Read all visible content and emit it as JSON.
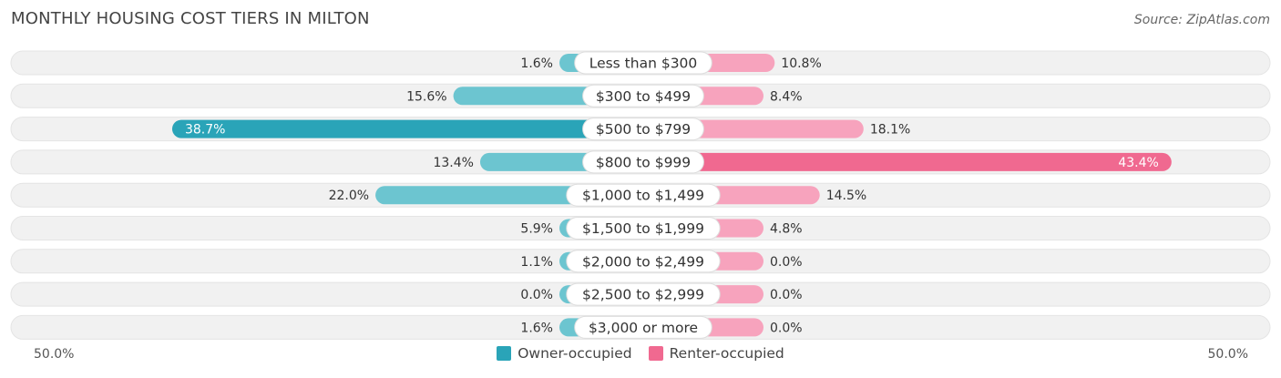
{
  "title": "MONTHLY HOUSING COST TIERS IN MILTON",
  "source": "Source: ZipAtlas.com",
  "colors": {
    "owner": "#6cc5d0",
    "owner_strong": "#2aa4b8",
    "renter": "#f7a3bd",
    "renter_strong": "#f06990",
    "track": "#f1f1f1"
  },
  "chart_data": {
    "type": "bar",
    "orientation": "horizontal-diverging",
    "categories": [
      "Less than $300",
      "$300 to $499",
      "$500 to $799",
      "$800 to $999",
      "$1,000 to $1,499",
      "$1,500 to $1,999",
      "$2,000 to $2,499",
      "$2,500 to $2,999",
      "$3,000 or more"
    ],
    "series": [
      {
        "name": "Owner-occupied",
        "values": [
          1.6,
          15.6,
          38.7,
          13.4,
          22.0,
          5.9,
          1.1,
          0.0,
          1.6
        ],
        "labels": [
          "1.6%",
          "15.6%",
          "38.7%",
          "13.4%",
          "22.0%",
          "5.9%",
          "1.1%",
          "0.0%",
          "1.6%"
        ]
      },
      {
        "name": "Renter-occupied",
        "values": [
          10.8,
          8.4,
          18.1,
          43.4,
          14.5,
          4.8,
          0.0,
          0.0,
          0.0
        ],
        "labels": [
          "10.8%",
          "8.4%",
          "18.1%",
          "43.4%",
          "14.5%",
          "4.8%",
          "0.0%",
          "0.0%",
          "0.0%"
        ]
      }
    ],
    "xlim": [
      -50,
      50
    ],
    "axis_left_label": "50.0%",
    "axis_right_label": "50.0%",
    "legend": [
      "Owner-occupied",
      "Renter-occupied"
    ]
  }
}
